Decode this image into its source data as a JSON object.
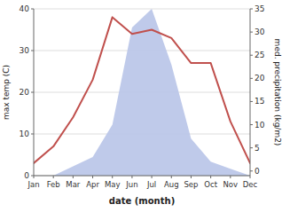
{
  "chart_data": {
    "type": "line",
    "xlabel": "date (month)",
    "ylabel": "max temp (C)",
    "y2label": "med. precipitation (kg/m2)",
    "categories": [
      "Jan",
      "Feb",
      "Mar",
      "Apr",
      "May",
      "Jun",
      "Jul",
      "Aug",
      "Sep",
      "Oct",
      "Nov",
      "Dec"
    ],
    "series": [
      {
        "type": "line",
        "color": "#c0504d",
        "values": [
          3,
          7,
          14,
          23,
          38,
          34,
          35,
          33,
          27,
          27,
          13,
          3
        ]
      },
      {
        "type": "area",
        "color": "#b8c4e8",
        "axis": "y2",
        "values": [
          -1,
          -1,
          1,
          3,
          10,
          31,
          35,
          23,
          7,
          2,
          0.5,
          -1
        ]
      }
    ],
    "ylim": [
      0,
      40
    ],
    "yticks": [
      0,
      10,
      20,
      30,
      40
    ],
    "y2lim": [
      -1,
      35
    ],
    "y2ticks": [
      0,
      5,
      10,
      15,
      20,
      25,
      30,
      35
    ],
    "grid": true
  }
}
